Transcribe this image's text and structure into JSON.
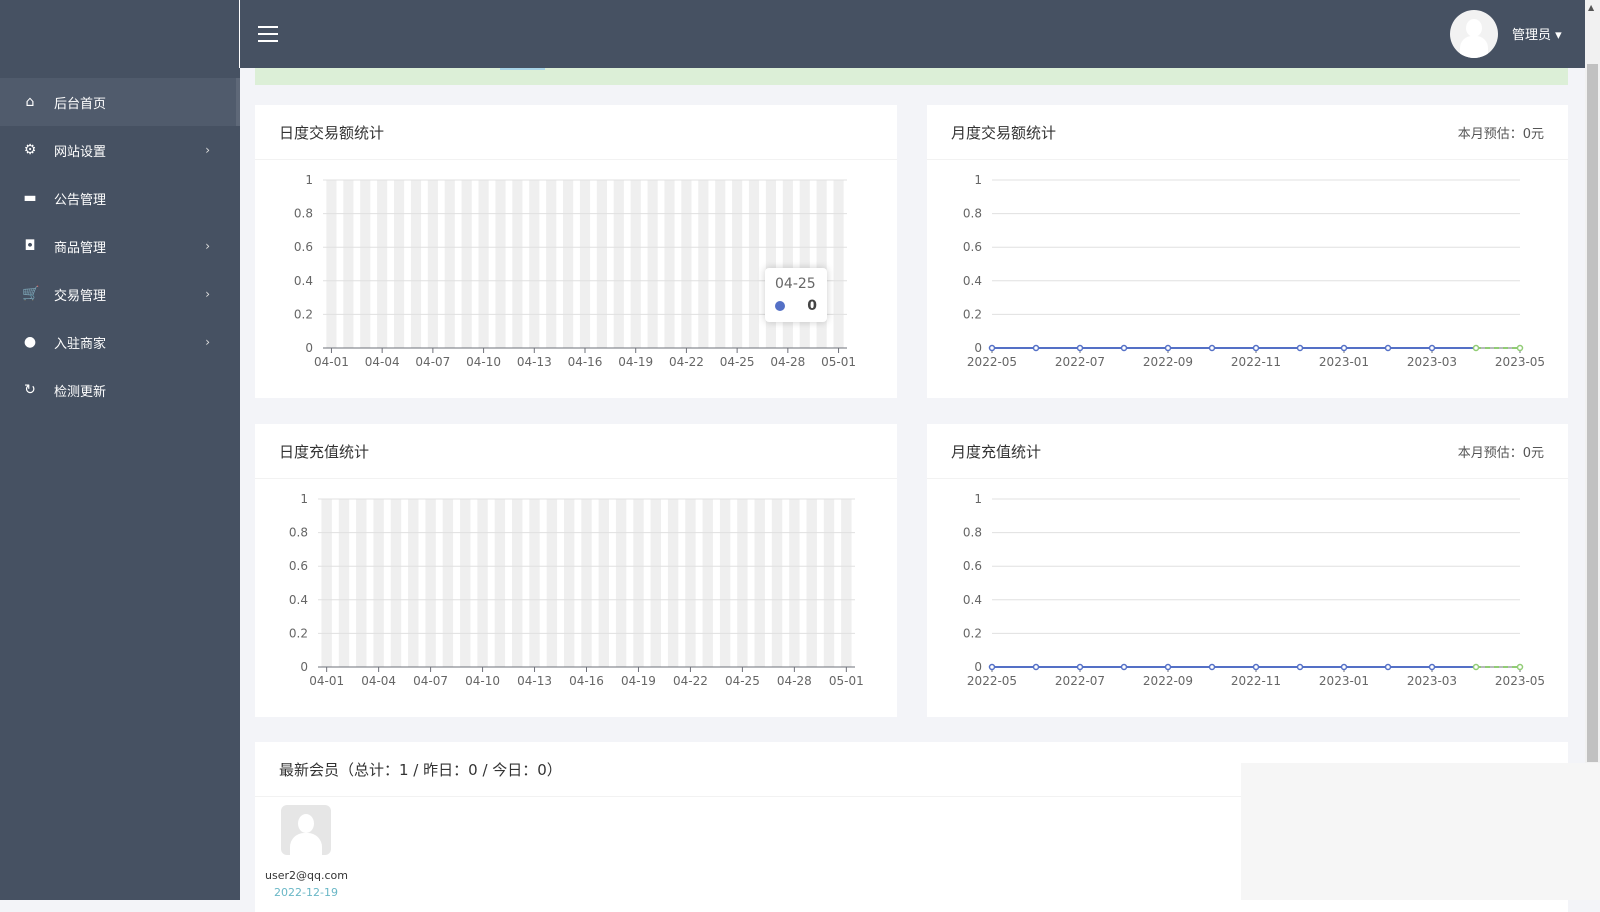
{
  "sidebar": {
    "items": [
      {
        "label": "后台首页",
        "icon": "home-icon",
        "glyph": "⌂",
        "active": true,
        "arrow": false
      },
      {
        "label": "网站设置",
        "icon": "gear-icon",
        "glyph": "⚙",
        "arrow": true
      },
      {
        "label": "公告管理",
        "icon": "news-icon",
        "glyph": "▬",
        "arrow": false
      },
      {
        "label": "商品管理",
        "icon": "shopping-bag-icon",
        "glyph": "◘",
        "arrow": true
      },
      {
        "label": "交易管理",
        "icon": "cart-icon",
        "glyph": "🛒",
        "arrow": true
      },
      {
        "label": "入驻商家",
        "icon": "user-icon",
        "glyph": "●",
        "arrow": true
      },
      {
        "label": "检测更新",
        "icon": "refresh-icon",
        "glyph": "↻",
        "arrow": false
      }
    ],
    "arrow_glyph": "›"
  },
  "header": {
    "user": "管理员 ▾"
  },
  "cards": {
    "daily_trade": {
      "title": "日度交易额统计"
    },
    "monthly_trade": {
      "title": "月度交易额统计",
      "estimate": "本月预估：0元"
    },
    "daily_recharge": {
      "title": "日度充值统计"
    },
    "monthly_recharge": {
      "title": "月度充值统计",
      "estimate": "本月预估：0元"
    },
    "members": {
      "title": "最新会员（总计：1 / 昨日：0 / 今日：0）",
      "list": [
        {
          "email": "user2@qq.com",
          "date": "2022-12-19"
        }
      ]
    }
  },
  "tooltip": {
    "category": "04-25",
    "value": "0"
  },
  "colors": {
    "series": "#5470c6",
    "forecast": "#91cc75",
    "shadow": "#efefef"
  },
  "chart_data": [
    {
      "type": "bar",
      "title": "日度交易额统计",
      "categories": [
        "04-01",
        "04-02",
        "04-03",
        "04-04",
        "04-05",
        "04-06",
        "04-07",
        "04-08",
        "04-09",
        "04-10",
        "04-11",
        "04-12",
        "04-13",
        "04-14",
        "04-15",
        "04-16",
        "04-17",
        "04-18",
        "04-19",
        "04-20",
        "04-21",
        "04-22",
        "04-23",
        "04-24",
        "04-25",
        "04-26",
        "04-27",
        "04-28",
        "04-29",
        "04-30",
        "05-01"
      ],
      "values": [
        0,
        0,
        0,
        0,
        0,
        0,
        0,
        0,
        0,
        0,
        0,
        0,
        0,
        0,
        0,
        0,
        0,
        0,
        0,
        0,
        0,
        0,
        0,
        0,
        0,
        0,
        0,
        0,
        0,
        0,
        0
      ],
      "xtick_labels": [
        "04-01",
        "04-04",
        "04-07",
        "04-10",
        "04-13",
        "04-16",
        "04-19",
        "04-22",
        "04-25",
        "04-28",
        "05-01"
      ],
      "yticks": [
        "0",
        "0.2",
        "0.4",
        "0.6",
        "0.8",
        "1"
      ],
      "ylim": [
        0,
        1
      ],
      "grid": true
    },
    {
      "type": "line",
      "title": "月度交易额统计",
      "categories": [
        "2022-05",
        "2022-06",
        "2022-07",
        "2022-08",
        "2022-09",
        "2022-10",
        "2022-11",
        "2022-12",
        "2023-01",
        "2023-02",
        "2023-03",
        "2023-04",
        "2023-05"
      ],
      "values": [
        0,
        0,
        0,
        0,
        0,
        0,
        0,
        0,
        0,
        0,
        0,
        0,
        0
      ],
      "forecast_from": "2023-04",
      "xtick_labels": [
        "2022-05",
        "2022-07",
        "2022-09",
        "2022-11",
        "2023-01",
        "2023-03",
        "2023-05"
      ],
      "yticks": [
        "0",
        "0.2",
        "0.4",
        "0.6",
        "0.8",
        "1"
      ],
      "ylim": [
        0,
        1
      ],
      "grid": true
    },
    {
      "type": "bar",
      "title": "日度充值统计",
      "categories": [
        "04-01",
        "04-02",
        "04-03",
        "04-04",
        "04-05",
        "04-06",
        "04-07",
        "04-08",
        "04-09",
        "04-10",
        "04-11",
        "04-12",
        "04-13",
        "04-14",
        "04-15",
        "04-16",
        "04-17",
        "04-18",
        "04-19",
        "04-20",
        "04-21",
        "04-22",
        "04-23",
        "04-24",
        "04-25",
        "04-26",
        "04-27",
        "04-28",
        "04-29",
        "04-30",
        "05-01"
      ],
      "values": [
        0,
        0,
        0,
        0,
        0,
        0,
        0,
        0,
        0,
        0,
        0,
        0,
        0,
        0,
        0,
        0,
        0,
        0,
        0,
        0,
        0,
        0,
        0,
        0,
        0,
        0,
        0,
        0,
        0,
        0,
        0
      ],
      "xtick_labels": [
        "04-01",
        "04-04",
        "04-07",
        "04-10",
        "04-13",
        "04-16",
        "04-19",
        "04-22",
        "04-25",
        "04-28",
        "05-01"
      ],
      "yticks": [
        "0",
        "0.2",
        "0.4",
        "0.6",
        "0.8",
        "1"
      ],
      "ylim": [
        0,
        1
      ],
      "grid": true
    },
    {
      "type": "line",
      "title": "月度充值统计",
      "categories": [
        "2022-05",
        "2022-06",
        "2022-07",
        "2022-08",
        "2022-09",
        "2022-10",
        "2022-11",
        "2022-12",
        "2023-01",
        "2023-02",
        "2023-03",
        "2023-04",
        "2023-05"
      ],
      "values": [
        0,
        0,
        0,
        0,
        0,
        0,
        0,
        0,
        0,
        0,
        0,
        0,
        0
      ],
      "forecast_from": "2023-04",
      "xtick_labels": [
        "2022-05",
        "2022-07",
        "2022-09",
        "2022-11",
        "2023-01",
        "2023-03",
        "2023-05"
      ],
      "yticks": [
        "0",
        "0.2",
        "0.4",
        "0.6",
        "0.8",
        "1"
      ],
      "ylim": [
        0,
        1
      ],
      "grid": true
    }
  ]
}
